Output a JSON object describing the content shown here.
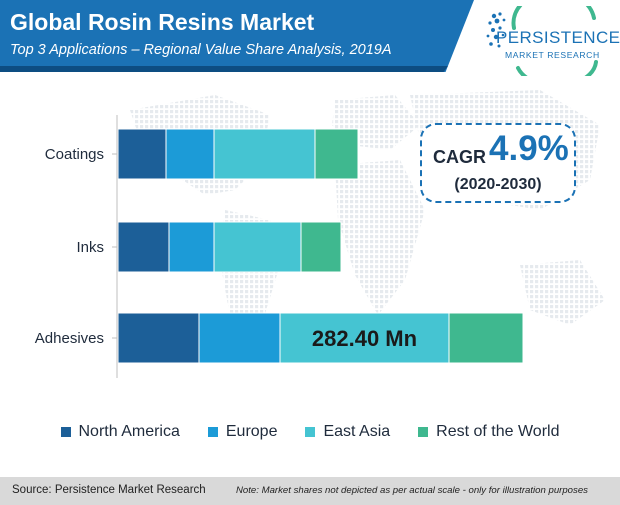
{
  "header": {
    "title": "Global Rosin Resins Market",
    "subtitle": "Top 3 Applications – Regional Value Share Analysis, 2019A"
  },
  "logo": {
    "name": "PERSISTENCE",
    "tagline": "MARKET RESEARCH"
  },
  "cagr": {
    "label": "CAGR",
    "value": "4.9%",
    "period": "(2020-2030)"
  },
  "chart_data": {
    "type": "bar",
    "orientation": "horizontal",
    "stacked": true,
    "categories": [
      "Coatings",
      "Inks",
      "Adhesives"
    ],
    "series": [
      {
        "name": "North America",
        "color": "#1c5f98",
        "values": [
          48,
          51,
          81
        ]
      },
      {
        "name": "Europe",
        "color": "#1c9bd7",
        "values": [
          48,
          45,
          81
        ]
      },
      {
        "name": "East Asia",
        "color": "#45c4d2",
        "values": [
          101,
          87,
          169
        ]
      },
      {
        "name": "Rest of the World",
        "color": "#3fb88f",
        "values": [
          43,
          40,
          74
        ]
      }
    ],
    "annotation": {
      "category": "Adhesives",
      "series": "East Asia",
      "text": "282.40 Mn"
    },
    "grid": false,
    "legend_position": "bottom",
    "scale_note": "relative shares only; no value axis printed"
  },
  "footer": {
    "source": "Source: Persistence Market Research",
    "note": "Note: Market shares not depicted as per actual scale - only for illustration purposes"
  }
}
